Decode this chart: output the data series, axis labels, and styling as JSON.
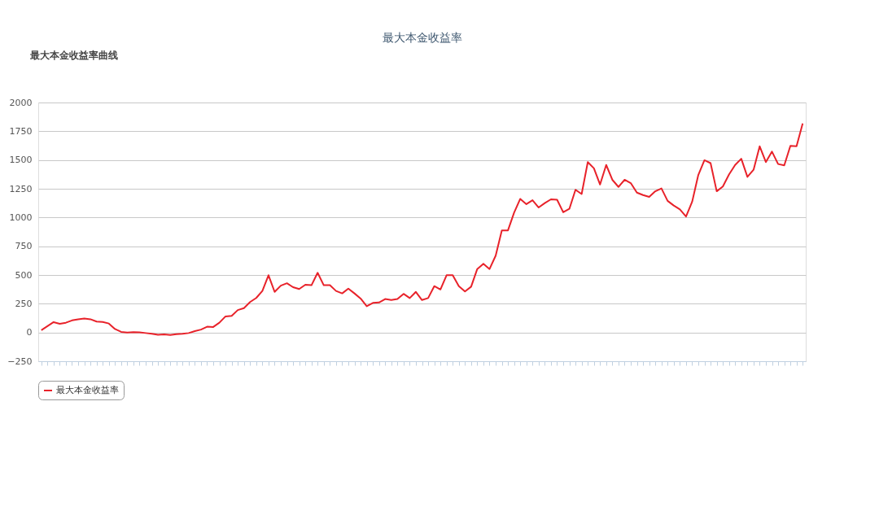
{
  "chart_data": {
    "type": "line",
    "title": "最大本金收益率",
    "annotations": [
      "最大本金收益率曲线"
    ],
    "categories": [
      null,
      null,
      null,
      null,
      null,
      null,
      null,
      null,
      null,
      null,
      null,
      null,
      null,
      null,
      null,
      null,
      null,
      null,
      null,
      null,
      null,
      null,
      null,
      null,
      null,
      null,
      null,
      null,
      null,
      null,
      null,
      null,
      null,
      null,
      null,
      null,
      null,
      null,
      null,
      null,
      null,
      null,
      null,
      null,
      null,
      null,
      null,
      null,
      null,
      null,
      null,
      null,
      null,
      null,
      null,
      null,
      null,
      null,
      null,
      null,
      null,
      null,
      null,
      null,
      null,
      null,
      null,
      null,
      null,
      null,
      null,
      null,
      null,
      null,
      null,
      null,
      null,
      null,
      null,
      null,
      null,
      null,
      null,
      null,
      null,
      null,
      null,
      null,
      null,
      null,
      null,
      null,
      null,
      null,
      null,
      null,
      null,
      null,
      null,
      null,
      null,
      null,
      null,
      null,
      null,
      null,
      null,
      null,
      null,
      null,
      null,
      null,
      null,
      null,
      null,
      null,
      null,
      null,
      null,
      null,
      null,
      null,
      null,
      null,
      null
    ],
    "series": [
      {
        "name": "最大本金收益率",
        "color": "#e8222a",
        "values": [
          20,
          55,
          90,
          75,
          85,
          105,
          115,
          122,
          115,
          95,
          92,
          78,
          30,
          5,
          0,
          3,
          2,
          -5,
          -12,
          -20,
          -17,
          -22,
          -15,
          -12,
          -5,
          12,
          25,
          50,
          48,
          85,
          140,
          145,
          195,
          212,
          265,
          300,
          361,
          498,
          353,
          407,
          428,
          394,
          378,
          415,
          411,
          519,
          411,
          411,
          361,
          340,
          382,
          340,
          295,
          228,
          257,
          261,
          291,
          282,
          291,
          336,
          299,
          353,
          282,
          299,
          403,
          374,
          498,
          498,
          403,
          357,
          398,
          552,
          598,
          552,
          668,
          888,
          888,
          1042,
          1162,
          1116,
          1150,
          1087,
          1125,
          1158,
          1154,
          1046,
          1075,
          1241,
          1204,
          1482,
          1428,
          1287,
          1457,
          1328,
          1266,
          1328,
          1299,
          1216,
          1195,
          1179,
          1228,
          1253,
          1145,
          1104,
          1071,
          1008,
          1137,
          1370,
          1498,
          1473,
          1228,
          1270,
          1374,
          1457,
          1511,
          1353,
          1415,
          1619,
          1482,
          1573,
          1465,
          1453,
          1623,
          1619,
          1818
        ]
      }
    ],
    "ylim": [
      -250,
      2000
    ],
    "yticks": [
      -250,
      0,
      250,
      500,
      750,
      1000,
      1250,
      1500,
      1750,
      2000
    ],
    "grid": "y",
    "legend": "bottom",
    "tick_labels": "y",
    "marker": "none",
    "line_style": "solid"
  }
}
